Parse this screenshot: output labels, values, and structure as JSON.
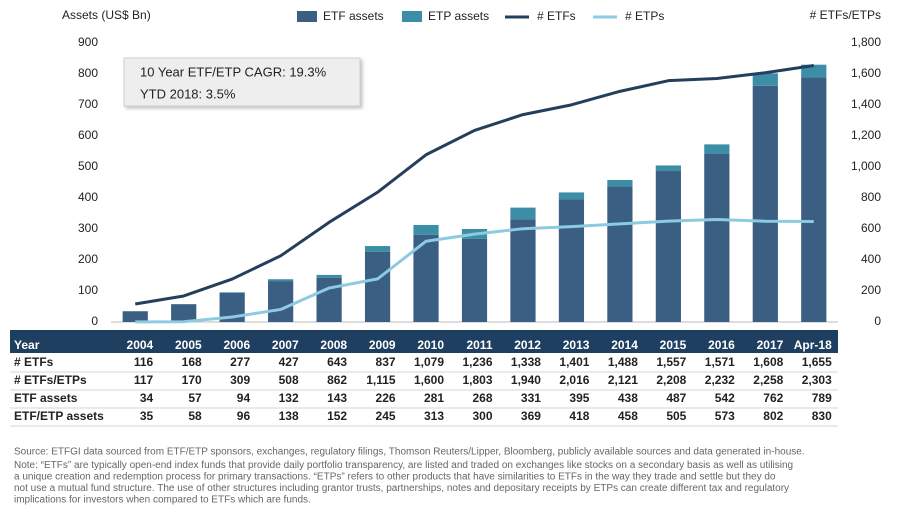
{
  "chart_data": {
    "type": "bar",
    "y_label": "Assets (US$ Bn)",
    "y2_label": "# ETFs/ETPs",
    "categories": [
      "2004",
      "2005",
      "2006",
      "2007",
      "2008",
      "2009",
      "2010",
      "2011",
      "2012",
      "2013",
      "2014",
      "2015",
      "2016",
      "2017",
      "Apr-18"
    ],
    "ylim": [
      0,
      900
    ],
    "yticks": [
      0,
      100,
      200,
      300,
      400,
      500,
      600,
      700,
      800,
      900
    ],
    "y2lim": [
      0,
      1800
    ],
    "y2ticks": [
      0,
      200,
      400,
      600,
      800,
      {
        "value": 1000,
        "label": "1,000"
      },
      {
        "value": 1200,
        "label": "1,200"
      },
      {
        "value": 1400,
        "label": "1,400"
      },
      {
        "value": 1600,
        "label": "1,600"
      },
      {
        "value": 1800,
        "label": "1,800"
      }
    ],
    "annotations": [
      "10 Year ETF/ETP CAGR: 19.3%",
      "YTD 2018: 3.5%"
    ],
    "series": [
      {
        "name": "ETF assets",
        "type": "bar",
        "color": "#3a5f82",
        "values": [
          34,
          57,
          94,
          132,
          143,
          226,
          281,
          268,
          331,
          395,
          438,
          487,
          542,
          762,
          789
        ]
      },
      {
        "name": "ETP assets",
        "type": "bar",
        "color": "#3b8ea5",
        "values": [
          1,
          1,
          2,
          6,
          9,
          19,
          32,
          32,
          38,
          23,
          20,
          18,
          31,
          40,
          41
        ]
      },
      {
        "name": "# ETFs",
        "type": "line",
        "axis": "y2",
        "color": "#243f5c",
        "values": [
          116,
          168,
          277,
          427,
          643,
          837,
          1079,
          1236,
          1338,
          1401,
          1488,
          1557,
          1571,
          1608,
          1655
        ]
      },
      {
        "name": "# ETPs",
        "type": "line",
        "axis": "y2",
        "color": "#8ecae0",
        "values": [
          1,
          2,
          32,
          81,
          219,
          278,
          521,
          567,
          602,
          615,
          633,
          651,
          661,
          650,
          648
        ]
      }
    ],
    "table": {
      "header": "Year",
      "rows": [
        {
          "label": "# ETFs",
          "cells": [
            "116",
            "168",
            "277",
            "427",
            "643",
            "837",
            "1,079",
            "1,236",
            "1,338",
            "1,401",
            "1,488",
            "1,557",
            "1,571",
            "1,608",
            "1,655"
          ]
        },
        {
          "label": "# ETFs/ETPs",
          "cells": [
            "117",
            "170",
            "309",
            "508",
            "862",
            "1,115",
            "1,600",
            "1,803",
            "1,940",
            "2,016",
            "2,121",
            "2,208",
            "2,232",
            "2,258",
            "2,303"
          ]
        },
        {
          "label": "ETF assets",
          "cells": [
            "34",
            "57",
            "94",
            "132",
            "143",
            "226",
            "281",
            "268",
            "331",
            "395",
            "438",
            "487",
            "542",
            "762",
            "789"
          ]
        },
        {
          "label": "ETF/ETP assets",
          "cells": [
            "35",
            "58",
            "96",
            "138",
            "152",
            "245",
            "313",
            "300",
            "369",
            "418",
            "458",
            "505",
            "573",
            "802",
            "830"
          ]
        }
      ]
    },
    "footnotes": [
      "Source: ETFGI data sourced from ETF/ETP sponsors, exchanges, regulatory filings, Thomson Reuters/Lipper, Bloomberg, publicly available sources and data generated in-house.",
      "Note: “ETFs” are typically open-end index funds that provide daily portfolio transparency, are listed and traded on exchanges like stocks on a secondary basis as well as utilising",
      "a unique creation and redemption process for primary transactions. “ETPs” refers to other products that have similarities to ETFs in the way they trade and settle but they do",
      "not use a mutual fund structure. The use of other structures including grantor trusts, partnerships, notes and depositary receipts by ETPs can create different tax and regulatory",
      "implications for investors when compared to ETFs which are funds."
    ]
  }
}
